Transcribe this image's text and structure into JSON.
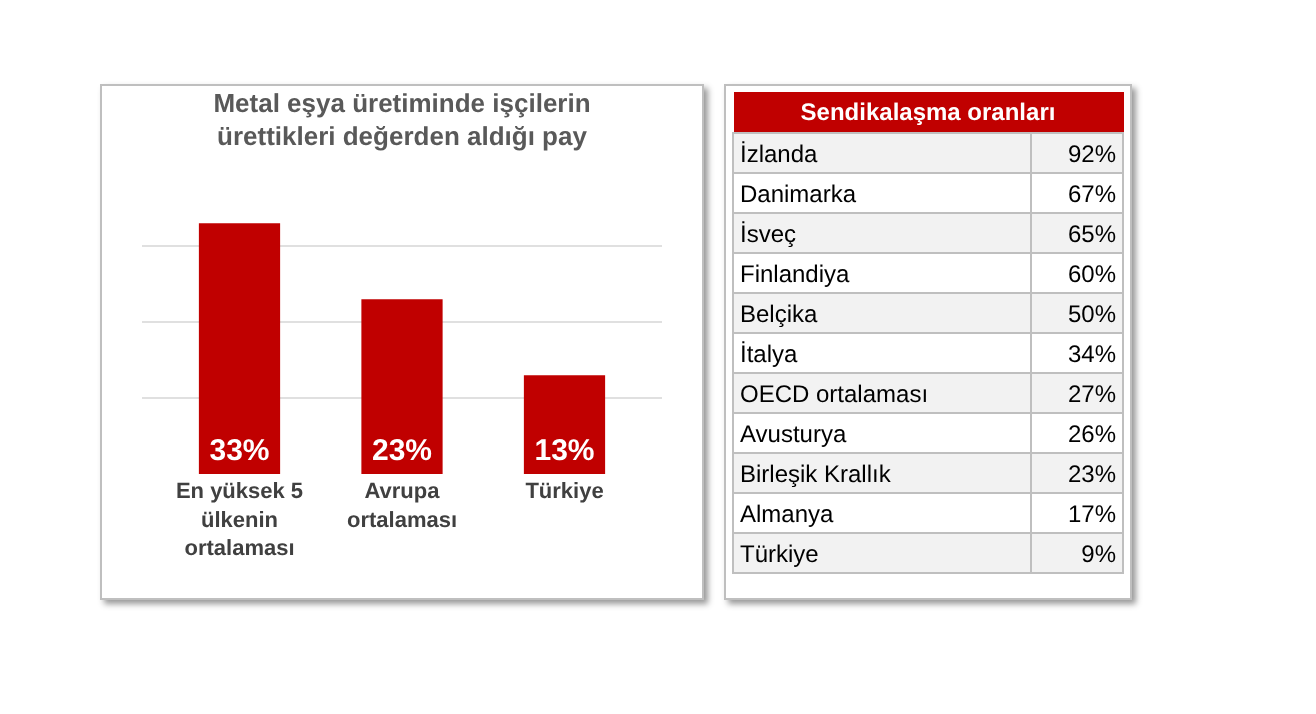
{
  "chart_data": [
    {
      "type": "bar",
      "title": "Metal eşya üretiminde işçilerin\nürettikleri değerden aldığı pay",
      "categories": [
        "En yüksek 5\nülkenin\nortalaması",
        "Avrupa\nortalaması",
        "Türkiye"
      ],
      "values": [
        33,
        23,
        13
      ],
      "value_labels": [
        "33%",
        "23%",
        "13%"
      ],
      "color": "#c00000",
      "grid": "y",
      "tick_labels": "x"
    },
    {
      "type": "other",
      "title": "Sendikalaşma oranları",
      "categories": [
        "İzlanda",
        "Danimarka",
        "İsveç",
        "Finlandiya",
        "Belçika",
        "İtalya",
        "OECD ortalaması",
        "Avusturya",
        "Birleşik Krallık",
        "Almanya",
        "Türkiye"
      ],
      "value_labels": [
        "92%",
        "67%",
        "65%",
        "60%",
        "50%",
        "34%",
        "27%",
        "26%",
        "23%",
        "17%",
        "9%"
      ]
    }
  ]
}
